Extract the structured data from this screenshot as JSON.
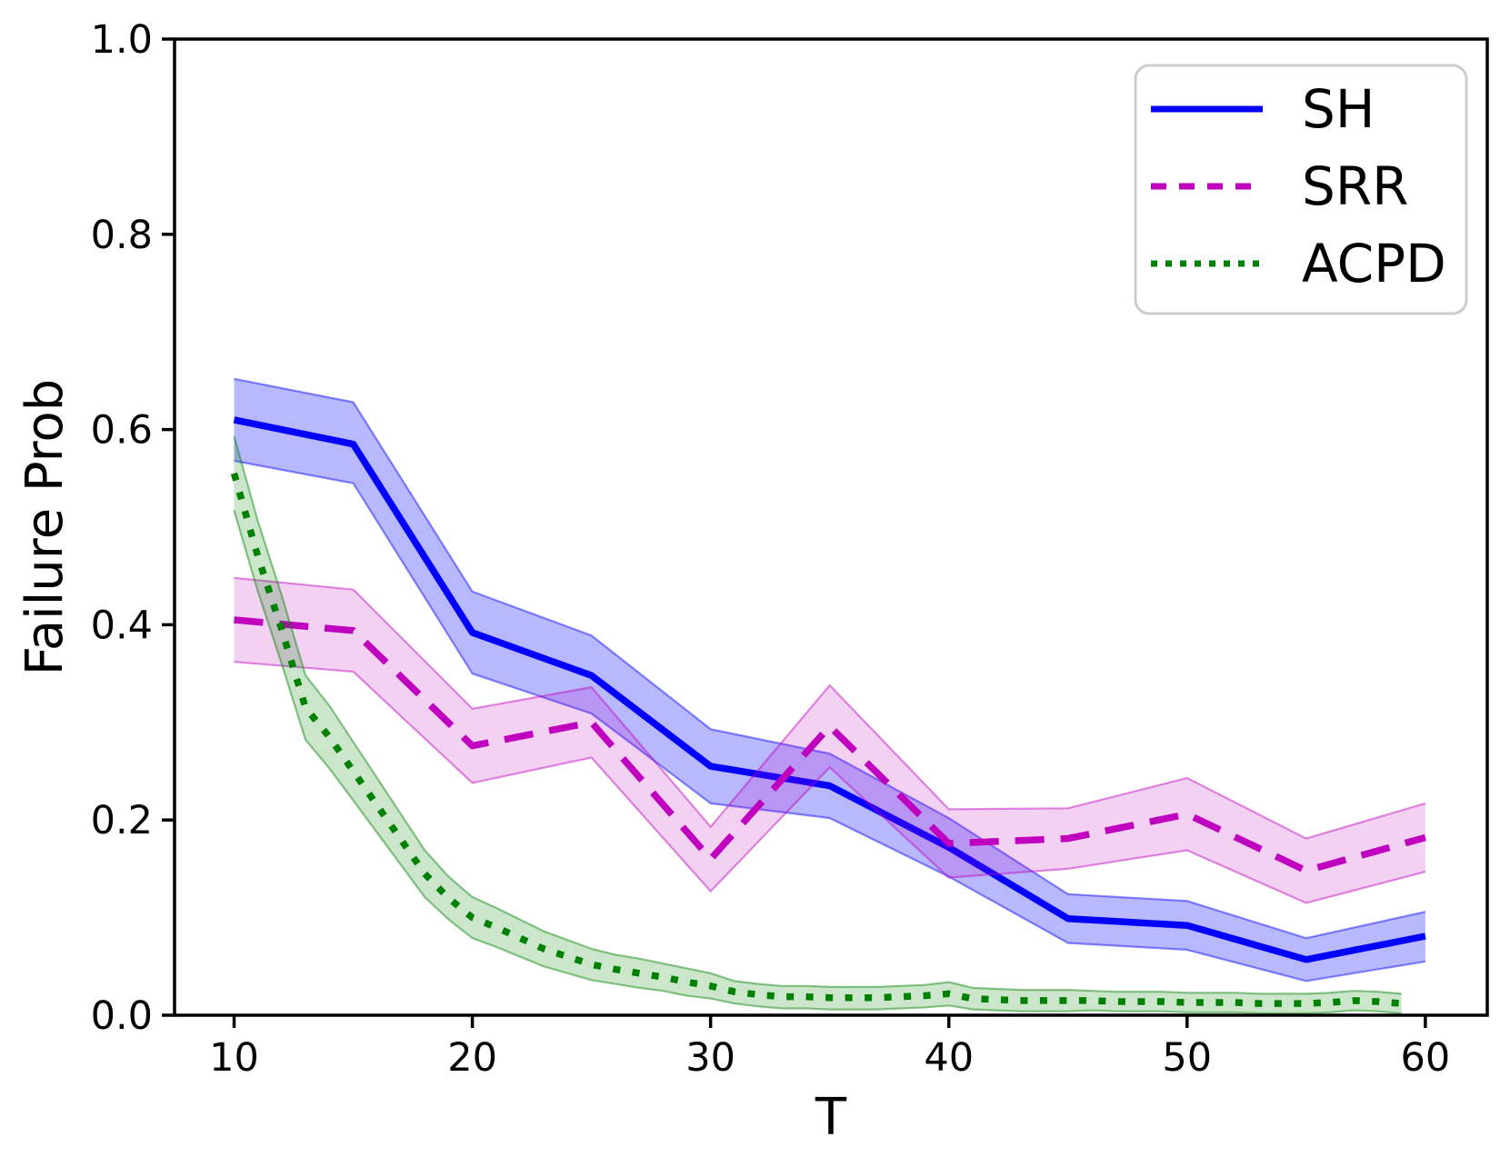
{
  "chart_data": {
    "type": "line",
    "title": "",
    "xlabel": "T",
    "ylabel": "Failure Prob",
    "xlim": [
      7.5,
      62.6
    ],
    "ylim": [
      0.0,
      1.0
    ],
    "x_ticks": [
      10,
      20,
      30,
      40,
      50,
      60
    ],
    "x_tick_labels": [
      "10",
      "20",
      "30",
      "40",
      "50",
      "60"
    ],
    "y_ticks": [
      0.0,
      0.2,
      0.4,
      0.6,
      0.8,
      1.0
    ],
    "y_tick_labels": [
      "0.0",
      "0.2",
      "0.4",
      "0.6",
      "0.8",
      "1.0"
    ],
    "grid": false,
    "legend_position": "upper right",
    "series": [
      {
        "name": "SH",
        "color": "#0000FF",
        "style": "solid",
        "band_opacity": 0.28,
        "x": [
          10,
          15,
          20,
          25,
          30,
          35,
          40,
          45,
          50,
          55,
          60
        ],
        "y": [
          0.61,
          0.585,
          0.392,
          0.348,
          0.255,
          0.235,
          0.172,
          0.099,
          0.092,
          0.057,
          0.081
        ],
        "band_lower": [
          0.568,
          0.545,
          0.35,
          0.309,
          0.217,
          0.202,
          0.142,
          0.074,
          0.067,
          0.035,
          0.055
        ],
        "band_upper": [
          0.652,
          0.628,
          0.434,
          0.389,
          0.293,
          0.268,
          0.202,
          0.124,
          0.117,
          0.079,
          0.106
        ]
      },
      {
        "name": "SRR",
        "color": "#BF00BF",
        "style": "dashed",
        "band_opacity": 0.18,
        "x": [
          10,
          15,
          20,
          25,
          30,
          35,
          40,
          45,
          50,
          55,
          60
        ],
        "y": [
          0.405,
          0.394,
          0.276,
          0.3,
          0.16,
          0.296,
          0.176,
          0.181,
          0.206,
          0.148,
          0.182
        ],
        "band_lower": [
          0.362,
          0.352,
          0.238,
          0.264,
          0.127,
          0.254,
          0.141,
          0.15,
          0.169,
          0.115,
          0.147
        ],
        "band_upper": [
          0.448,
          0.436,
          0.314,
          0.336,
          0.193,
          0.338,
          0.211,
          0.212,
          0.243,
          0.181,
          0.217
        ]
      },
      {
        "name": "ACPD",
        "color": "#008000",
        "style": "dotted",
        "band_opacity": 0.2,
        "x": [
          10,
          11,
          12,
          13,
          14,
          15,
          16,
          17,
          18,
          19,
          20,
          21,
          22,
          23,
          24,
          25,
          26,
          27,
          28,
          29,
          30,
          31,
          32,
          33,
          34,
          35,
          36,
          37,
          38,
          39,
          40,
          41,
          42,
          43,
          44,
          45,
          46,
          47,
          48,
          49,
          50,
          51,
          52,
          53,
          54,
          55,
          56,
          57,
          58,
          59
        ],
        "y": [
          0.555,
          0.47,
          0.395,
          0.315,
          0.285,
          0.25,
          0.215,
          0.18,
          0.145,
          0.12,
          0.1,
          0.09,
          0.079,
          0.068,
          0.06,
          0.052,
          0.047,
          0.043,
          0.039,
          0.034,
          0.03,
          0.024,
          0.021,
          0.019,
          0.019,
          0.018,
          0.018,
          0.018,
          0.019,
          0.02,
          0.022,
          0.017,
          0.016,
          0.015,
          0.015,
          0.015,
          0.015,
          0.014,
          0.014,
          0.014,
          0.013,
          0.013,
          0.013,
          0.012,
          0.012,
          0.012,
          0.013,
          0.015,
          0.014,
          0.012
        ],
        "band_lower": [
          0.517,
          0.434,
          0.36,
          0.282,
          0.253,
          0.22,
          0.187,
          0.154,
          0.121,
          0.098,
          0.079,
          0.07,
          0.06,
          0.05,
          0.043,
          0.036,
          0.032,
          0.028,
          0.025,
          0.02,
          0.017,
          0.012,
          0.009,
          0.007,
          0.007,
          0.006,
          0.006,
          0.006,
          0.007,
          0.008,
          0.01,
          0.006,
          0.005,
          0.004,
          0.004,
          0.004,
          0.005,
          0.004,
          0.004,
          0.004,
          0.003,
          0.003,
          0.003,
          0.002,
          0.002,
          0.002,
          0.003,
          0.005,
          0.004,
          0.002
        ],
        "band_upper": [
          0.593,
          0.506,
          0.43,
          0.348,
          0.317,
          0.28,
          0.243,
          0.206,
          0.169,
          0.142,
          0.121,
          0.11,
          0.098,
          0.086,
          0.077,
          0.068,
          0.062,
          0.058,
          0.053,
          0.048,
          0.043,
          0.035,
          0.032,
          0.03,
          0.03,
          0.029,
          0.029,
          0.029,
          0.03,
          0.031,
          0.034,
          0.028,
          0.027,
          0.026,
          0.026,
          0.026,
          0.025,
          0.024,
          0.024,
          0.024,
          0.023,
          0.023,
          0.023,
          0.022,
          0.022,
          0.022,
          0.023,
          0.025,
          0.024,
          0.022
        ]
      }
    ],
    "legend": {
      "entries": [
        {
          "label": "SH",
          "color": "#0000FF",
          "style": "solid"
        },
        {
          "label": "SRR",
          "color": "#BF00BF",
          "style": "dashed"
        },
        {
          "label": "ACPD",
          "color": "#008000",
          "style": "dotted"
        }
      ],
      "border_color": "#cccccc"
    },
    "axis_color": "#000000"
  }
}
